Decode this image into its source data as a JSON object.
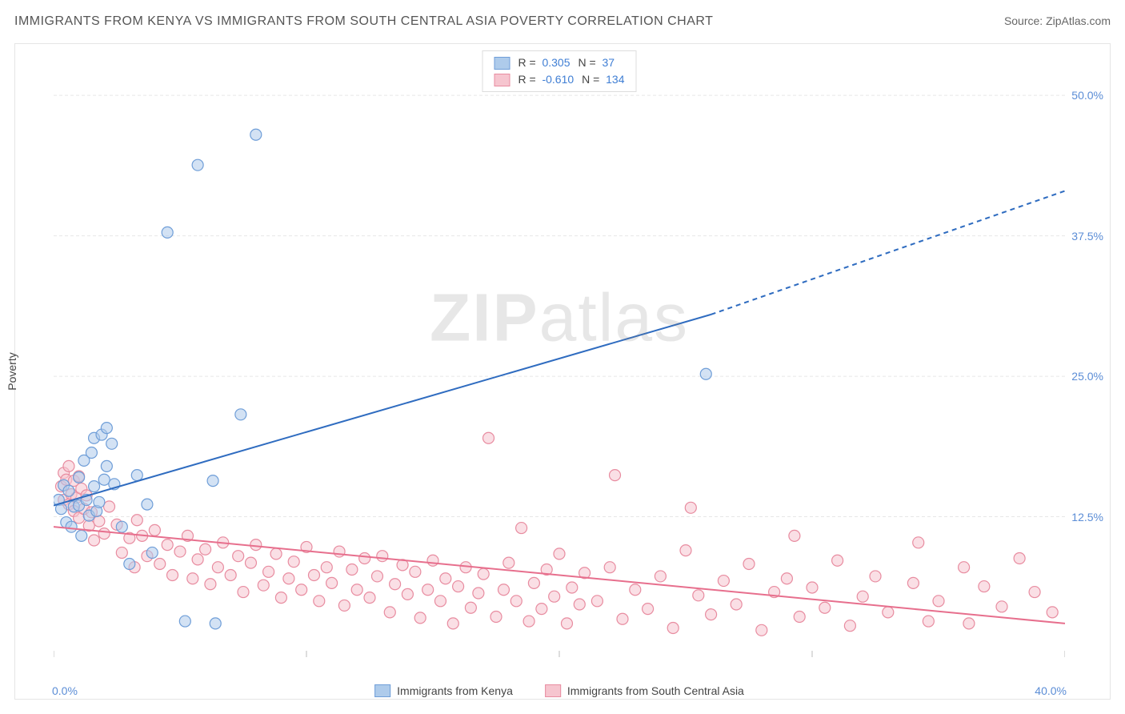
{
  "title": "IMMIGRANTS FROM KENYA VS IMMIGRANTS FROM SOUTH CENTRAL ASIA POVERTY CORRELATION CHART",
  "source": "Source: ZipAtlas.com",
  "ylabel": "Poverty",
  "watermark_zip": "ZIP",
  "watermark_atlas": "atlas",
  "chart": {
    "type": "scatter",
    "xlim": [
      0,
      40
    ],
    "ylim": [
      0,
      54
    ],
    "x_ticks": [
      0,
      10,
      20,
      30,
      40
    ],
    "x_tick_labels_shown": {
      "min": "0.0%",
      "max": "40.0%"
    },
    "y_gridlines": [
      12.5,
      25.0,
      37.5,
      50.0
    ],
    "y_tick_labels": [
      "12.5%",
      "25.0%",
      "37.5%",
      "50.0%"
    ],
    "y_label_color": "#5b8dd6",
    "x_label_color": "#5b8dd6",
    "background_color": "#ffffff",
    "grid_color": "#e6e6e6",
    "grid_dash": "4,3",
    "marker_radius": 7,
    "marker_stroke_width": 1.2,
    "series": [
      {
        "name": "Immigrants from Kenya",
        "fill_color": "#aecbeb",
        "fill_opacity": 0.55,
        "stroke_color": "#6f9ed8",
        "swatch_fill": "#aecbeb",
        "swatch_stroke": "#6f9ed8",
        "R_label": "R =",
        "R_value": "0.305",
        "N_label": "N =",
        "N_value": "37",
        "stat_value_color": "#3f7ed4",
        "trend": {
          "solid": {
            "x1": 0,
            "y1": 13.5,
            "x2": 26,
            "y2": 30.5
          },
          "dashed": {
            "x1": 26,
            "y1": 30.5,
            "x2": 40,
            "y2": 41.5
          },
          "color": "#2f6cc0",
          "width": 2,
          "dash": "6,5"
        },
        "points": [
          [
            0.2,
            14.0
          ],
          [
            0.3,
            13.2
          ],
          [
            0.4,
            15.3
          ],
          [
            0.5,
            12.0
          ],
          [
            0.6,
            14.8
          ],
          [
            0.7,
            11.6
          ],
          [
            0.8,
            13.4
          ],
          [
            1.0,
            13.5
          ],
          [
            1.0,
            16.0
          ],
          [
            1.1,
            10.8
          ],
          [
            1.2,
            17.5
          ],
          [
            1.3,
            14.0
          ],
          [
            1.4,
            12.6
          ],
          [
            1.5,
            18.2
          ],
          [
            1.6,
            15.2
          ],
          [
            1.6,
            19.5
          ],
          [
            1.7,
            13.0
          ],
          [
            1.8,
            13.8
          ],
          [
            1.9,
            19.8
          ],
          [
            2.0,
            15.8
          ],
          [
            2.1,
            20.4
          ],
          [
            2.1,
            17.0
          ],
          [
            2.3,
            19.0
          ],
          [
            2.4,
            15.4
          ],
          [
            2.7,
            11.6
          ],
          [
            3.0,
            8.3
          ],
          [
            3.3,
            16.2
          ],
          [
            3.7,
            13.6
          ],
          [
            3.9,
            9.3
          ],
          [
            4.5,
            37.8
          ],
          [
            5.2,
            3.2
          ],
          [
            5.7,
            43.8
          ],
          [
            6.3,
            15.7
          ],
          [
            6.4,
            3.0
          ],
          [
            7.4,
            21.6
          ],
          [
            8.0,
            46.5
          ],
          [
            25.8,
            25.2
          ]
        ]
      },
      {
        "name": "Immigrants from South Central Asia",
        "fill_color": "#f6c5cf",
        "fill_opacity": 0.55,
        "stroke_color": "#e88ca0",
        "swatch_fill": "#f6c5cf",
        "swatch_stroke": "#e88ca0",
        "R_label": "R =",
        "R_value": "-0.610",
        "N_label": "N =",
        "N_value": "134",
        "stat_value_color": "#3f7ed4",
        "trend": {
          "solid": {
            "x1": 0,
            "y1": 11.6,
            "x2": 40,
            "y2": 3.0
          },
          "dashed": null,
          "color": "#e76f8d",
          "width": 2,
          "dash": null
        },
        "points": [
          [
            0.3,
            15.2
          ],
          [
            0.4,
            16.4
          ],
          [
            0.4,
            14.0
          ],
          [
            0.5,
            15.8
          ],
          [
            0.6,
            13.6
          ],
          [
            0.6,
            17.0
          ],
          [
            0.7,
            14.5
          ],
          [
            0.8,
            15.7
          ],
          [
            0.8,
            13.0
          ],
          [
            0.9,
            14.2
          ],
          [
            1.0,
            16.1
          ],
          [
            1.0,
            12.4
          ],
          [
            1.1,
            15.0
          ],
          [
            1.2,
            13.2
          ],
          [
            1.3,
            14.4
          ],
          [
            1.4,
            11.7
          ],
          [
            1.5,
            12.9
          ],
          [
            1.6,
            10.4
          ],
          [
            1.8,
            12.1
          ],
          [
            2.0,
            11.0
          ],
          [
            2.2,
            13.4
          ],
          [
            2.5,
            11.8
          ],
          [
            2.7,
            9.3
          ],
          [
            3.0,
            10.6
          ],
          [
            3.2,
            8.0
          ],
          [
            3.3,
            12.2
          ],
          [
            3.5,
            10.8
          ],
          [
            3.7,
            9.0
          ],
          [
            4.0,
            11.3
          ],
          [
            4.2,
            8.3
          ],
          [
            4.5,
            10.0
          ],
          [
            4.7,
            7.3
          ],
          [
            5.0,
            9.4
          ],
          [
            5.3,
            10.8
          ],
          [
            5.5,
            7.0
          ],
          [
            5.7,
            8.7
          ],
          [
            6.0,
            9.6
          ],
          [
            6.2,
            6.5
          ],
          [
            6.5,
            8.0
          ],
          [
            6.7,
            10.2
          ],
          [
            7.0,
            7.3
          ],
          [
            7.3,
            9.0
          ],
          [
            7.5,
            5.8
          ],
          [
            7.8,
            8.4
          ],
          [
            8.0,
            10.0
          ],
          [
            8.3,
            6.4
          ],
          [
            8.5,
            7.6
          ],
          [
            8.8,
            9.2
          ],
          [
            9.0,
            5.3
          ],
          [
            9.3,
            7.0
          ],
          [
            9.5,
            8.5
          ],
          [
            9.8,
            6.0
          ],
          [
            10.0,
            9.8
          ],
          [
            10.3,
            7.3
          ],
          [
            10.5,
            5.0
          ],
          [
            10.8,
            8.0
          ],
          [
            11.0,
            6.6
          ],
          [
            11.3,
            9.4
          ],
          [
            11.5,
            4.6
          ],
          [
            11.8,
            7.8
          ],
          [
            12.0,
            6.0
          ],
          [
            12.3,
            8.8
          ],
          [
            12.5,
            5.3
          ],
          [
            12.8,
            7.2
          ],
          [
            13.0,
            9.0
          ],
          [
            13.3,
            4.0
          ],
          [
            13.5,
            6.5
          ],
          [
            13.8,
            8.2
          ],
          [
            14.0,
            5.6
          ],
          [
            14.3,
            7.6
          ],
          [
            14.5,
            3.5
          ],
          [
            14.8,
            6.0
          ],
          [
            15.0,
            8.6
          ],
          [
            15.3,
            5.0
          ],
          [
            15.5,
            7.0
          ],
          [
            15.8,
            3.0
          ],
          [
            16.0,
            6.3
          ],
          [
            16.3,
            8.0
          ],
          [
            16.5,
            4.4
          ],
          [
            16.8,
            5.7
          ],
          [
            17.0,
            7.4
          ],
          [
            17.2,
            19.5
          ],
          [
            17.5,
            3.6
          ],
          [
            17.8,
            6.0
          ],
          [
            18.0,
            8.4
          ],
          [
            18.3,
            5.0
          ],
          [
            18.5,
            11.5
          ],
          [
            18.8,
            3.2
          ],
          [
            19.0,
            6.6
          ],
          [
            19.3,
            4.3
          ],
          [
            19.5,
            7.8
          ],
          [
            19.8,
            5.4
          ],
          [
            20.0,
            9.2
          ],
          [
            20.3,
            3.0
          ],
          [
            20.5,
            6.2
          ],
          [
            20.8,
            4.7
          ],
          [
            21.0,
            7.5
          ],
          [
            21.5,
            5.0
          ],
          [
            22.0,
            8.0
          ],
          [
            22.2,
            16.2
          ],
          [
            22.5,
            3.4
          ],
          [
            23.0,
            6.0
          ],
          [
            23.5,
            4.3
          ],
          [
            24.0,
            7.2
          ],
          [
            24.5,
            2.6
          ],
          [
            25.0,
            9.5
          ],
          [
            25.2,
            13.3
          ],
          [
            25.5,
            5.5
          ],
          [
            26.0,
            3.8
          ],
          [
            26.5,
            6.8
          ],
          [
            27.0,
            4.7
          ],
          [
            27.5,
            8.3
          ],
          [
            28.0,
            2.4
          ],
          [
            28.5,
            5.8
          ],
          [
            29.0,
            7.0
          ],
          [
            29.3,
            10.8
          ],
          [
            29.5,
            3.6
          ],
          [
            30.0,
            6.2
          ],
          [
            30.5,
            4.4
          ],
          [
            31.0,
            8.6
          ],
          [
            31.5,
            2.8
          ],
          [
            32.0,
            5.4
          ],
          [
            32.5,
            7.2
          ],
          [
            33.0,
            4.0
          ],
          [
            34.0,
            6.6
          ],
          [
            34.2,
            10.2
          ],
          [
            34.6,
            3.2
          ],
          [
            35.0,
            5.0
          ],
          [
            36.0,
            8.0
          ],
          [
            36.2,
            3.0
          ],
          [
            36.8,
            6.3
          ],
          [
            37.5,
            4.5
          ],
          [
            38.2,
            8.8
          ],
          [
            38.8,
            5.8
          ],
          [
            39.5,
            4.0
          ]
        ]
      }
    ]
  },
  "series_legend_items": [
    {
      "label": "Immigrants from Kenya"
    },
    {
      "label": "Immigrants from South Central Asia"
    }
  ]
}
